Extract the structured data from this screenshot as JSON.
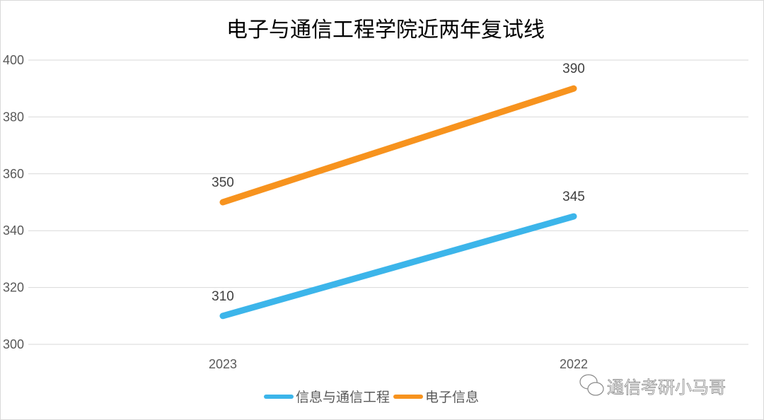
{
  "chart_data": {
    "type": "line",
    "title": "电子与通信工程学院近两年复试线",
    "categories": [
      "2023",
      "2022"
    ],
    "ylim": [
      300,
      400
    ],
    "yticks": [
      300,
      320,
      340,
      360,
      380,
      400
    ],
    "grid": true,
    "legend_position": "bottom",
    "series": [
      {
        "name": "信息与通信工程",
        "values": [
          310,
          345
        ],
        "color": "#3cb5ea"
      },
      {
        "name": "电子信息",
        "values": [
          350,
          390
        ],
        "color": "#f7931e"
      }
    ]
  },
  "watermark": "通信考研小马哥"
}
